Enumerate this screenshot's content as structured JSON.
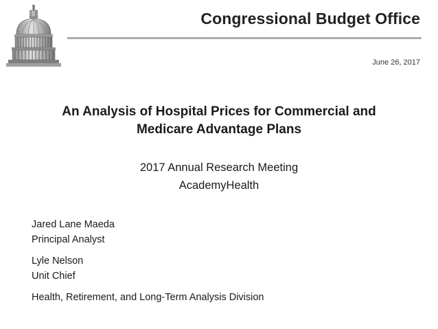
{
  "header": {
    "organization": "Congressional Budget Office",
    "date": "June 26, 2017",
    "logo_icon": "capitol-dome-icon"
  },
  "title": {
    "line1": "An Analysis of Hospital Prices for Commercial and",
    "line2": "Medicare Advantage Plans"
  },
  "meeting": {
    "line1": "2017 Annual Research Meeting",
    "line2": "AcademyHealth"
  },
  "authors": [
    {
      "name": "Jared Lane Maeda",
      "role": "Principal Analyst"
    },
    {
      "name": "Lyle Nelson",
      "role": "Unit Chief"
    }
  ],
  "division": "Health, Retirement, and Long-Term Analysis Division",
  "colors": {
    "rule": "#ababab",
    "text": "#1a1a1a"
  }
}
